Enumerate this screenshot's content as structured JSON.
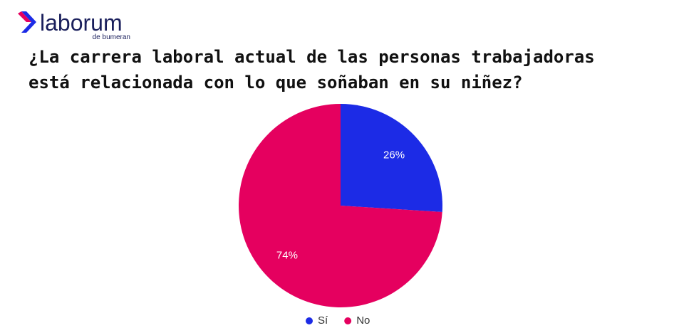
{
  "logo": {
    "name": "laborum",
    "tagline": "de bumeran"
  },
  "chart_data": {
    "type": "pie",
    "title": [
      "¿La carrera laboral actual de las personas trabajadoras",
      "está relacionada con lo que soñaban en su niñez?"
    ],
    "categories": [
      "Sí",
      "No"
    ],
    "values": [
      26,
      74
    ],
    "value_labels": [
      "26%",
      "74%"
    ],
    "colors": [
      "#1c2be6",
      "#e5005f"
    ],
    "legend": "bottom"
  }
}
